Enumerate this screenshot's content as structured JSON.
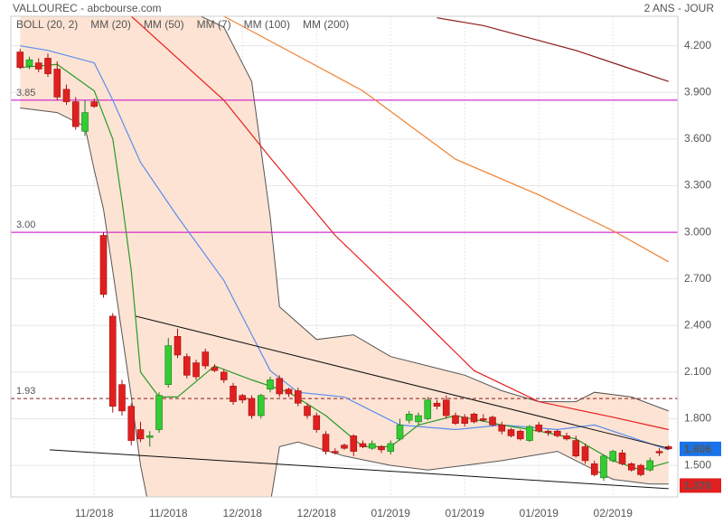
{
  "chart_data": {
    "type": "candlestick",
    "title": "VALLOUREC - abcbourse.com",
    "period": "2 ANS - JOUR",
    "xlim": [
      -1,
      71
    ],
    "ylim": [
      1.297,
      4.39
    ],
    "grid": true,
    "xticks": [
      {
        "value": 8,
        "label": "11/2018"
      },
      {
        "value": 16,
        "label": "11/2018"
      },
      {
        "value": 24,
        "label": "12/2018"
      },
      {
        "value": 32,
        "label": "12/2018"
      },
      {
        "value": 40,
        "label": "01/2019"
      },
      {
        "value": 48,
        "label": "01/2019"
      },
      {
        "value": 56,
        "label": "01/2019"
      },
      {
        "value": 64,
        "label": "02/2019"
      }
    ],
    "yticks": [
      {
        "value": 4.2,
        "label": "4.200"
      },
      {
        "value": 3.9,
        "label": "3.900"
      },
      {
        "value": 3.6,
        "label": "3.600"
      },
      {
        "value": 3.3,
        "label": "3.300"
      },
      {
        "value": 3.0,
        "label": "3.000"
      },
      {
        "value": 2.7,
        "label": "2.700"
      },
      {
        "value": 2.4,
        "label": "2.400"
      },
      {
        "value": 2.1,
        "label": "2.100"
      },
      {
        "value": 1.8,
        "label": "1.800"
      },
      {
        "value": 1.5,
        "label": "1.500"
      }
    ],
    "up_color": "#33cc33",
    "down_color": "#e02020",
    "candles": {
      "open": [
        4.16,
        4.07,
        4.09,
        4.12,
        4.05,
        3.92,
        3.84,
        3.65,
        3.84,
        2.98,
        2.46,
        2.02,
        1.88,
        1.73,
        1.68,
        1.73,
        2.02,
        2.33,
        2.2,
        2.16,
        2.23,
        2.13,
        2.1,
        2.01,
        1.95,
        1.93,
        1.82,
        1.99,
        2.06,
        1.99,
        1.98,
        1.88,
        1.82,
        1.7,
        1.59,
        1.63,
        1.69,
        1.64,
        1.61,
        1.62,
        1.59,
        1.67,
        1.79,
        1.78,
        1.8,
        1.9,
        1.92,
        1.82,
        1.81,
        1.83,
        1.8,
        1.81,
        1.76,
        1.73,
        1.72,
        1.66,
        1.76,
        1.72,
        1.72,
        1.69,
        1.66,
        1.62,
        1.51,
        1.42,
        1.53,
        1.58,
        1.51,
        1.5,
        1.47,
        1.59,
        1.62
      ],
      "high": [
        4.18,
        4.13,
        4.12,
        4.15,
        4.1,
        3.95,
        3.87,
        3.85,
        3.86,
        3.0,
        2.48,
        2.05,
        1.9,
        1.78,
        1.72,
        1.97,
        2.32,
        2.38,
        2.22,
        2.18,
        2.25,
        2.15,
        2.12,
        2.03,
        1.96,
        1.95,
        1.96,
        2.07,
        2.08,
        2.0,
        2.0,
        1.9,
        1.84,
        1.72,
        1.61,
        1.64,
        1.7,
        1.66,
        1.66,
        1.63,
        1.66,
        1.8,
        1.85,
        1.84,
        1.94,
        1.92,
        1.95,
        1.84,
        1.83,
        1.84,
        1.83,
        1.82,
        1.78,
        1.74,
        1.73,
        1.76,
        1.78,
        1.73,
        1.73,
        1.71,
        1.69,
        1.64,
        1.53,
        1.57,
        1.6,
        1.6,
        1.52,
        1.51,
        1.55,
        1.61,
        1.63
      ],
      "low": [
        4.05,
        4.05,
        4.03,
        4.0,
        3.85,
        3.82,
        3.66,
        3.62,
        3.8,
        2.58,
        1.84,
        1.82,
        1.63,
        1.65,
        1.62,
        1.71,
        2.0,
        2.19,
        2.06,
        2.05,
        2.12,
        2.1,
        2.03,
        1.89,
        1.9,
        1.8,
        1.8,
        1.97,
        1.94,
        1.94,
        1.88,
        1.8,
        1.71,
        1.57,
        1.57,
        1.6,
        1.56,
        1.61,
        1.6,
        1.58,
        1.57,
        1.66,
        1.77,
        1.76,
        1.79,
        1.86,
        1.8,
        1.76,
        1.75,
        1.77,
        1.78,
        1.75,
        1.7,
        1.68,
        1.66,
        1.65,
        1.71,
        1.69,
        1.68,
        1.66,
        1.55,
        1.51,
        1.43,
        1.4,
        1.52,
        1.5,
        1.46,
        1.43,
        1.46,
        1.56,
        1.6
      ],
      "close": [
        4.06,
        4.11,
        4.05,
        4.02,
        3.87,
        3.84,
        3.68,
        3.77,
        3.81,
        2.6,
        1.88,
        1.85,
        1.66,
        1.67,
        1.69,
        1.95,
        2.27,
        2.21,
        2.08,
        2.07,
        2.14,
        2.11,
        2.05,
        1.91,
        1.92,
        1.82,
        1.95,
        2.05,
        1.96,
        1.96,
        1.9,
        1.82,
        1.73,
        1.59,
        1.58,
        1.61,
        1.59,
        1.62,
        1.64,
        1.6,
        1.64,
        1.76,
        1.83,
        1.82,
        1.92,
        1.88,
        1.82,
        1.77,
        1.77,
        1.78,
        1.79,
        1.76,
        1.72,
        1.69,
        1.67,
        1.75,
        1.72,
        1.71,
        1.69,
        1.67,
        1.56,
        1.53,
        1.44,
        1.56,
        1.59,
        1.51,
        1.47,
        1.44,
        1.53,
        1.58,
        1.606
      ]
    },
    "bollinger": {
      "name": "BOLL (20, 2)",
      "color": "#555555",
      "fill": "#fde3d3",
      "x_upper": [
        0,
        12,
        22,
        25,
        27,
        28,
        32,
        36,
        40,
        44,
        48,
        52,
        56,
        60,
        62,
        66,
        70
      ],
      "upper": [
        4.6,
        4.6,
        4.32,
        3.97,
        3.1,
        2.52,
        2.31,
        2.34,
        2.2,
        2.14,
        2.08,
        1.98,
        1.91,
        1.91,
        1.97,
        1.94,
        1.85
      ],
      "x_lower": [
        0,
        4,
        7,
        8,
        9,
        10,
        12,
        13,
        14,
        15,
        27,
        28,
        30,
        35,
        40,
        44,
        48,
        52,
        58,
        61,
        64,
        68,
        70
      ],
      "lower": [
        3.8,
        3.77,
        3.68,
        3.4,
        3.15,
        2.75,
        1.94,
        1.5,
        1.2,
        1.1,
        1.25,
        1.62,
        1.65,
        1.56,
        1.5,
        1.47,
        1.5,
        1.53,
        1.59,
        1.5,
        1.41,
        1.38,
        1.38
      ]
    },
    "lines": [
      {
        "name": "MM (20)",
        "color": "#5b8def",
        "x": [
          0,
          3,
          8,
          10,
          13,
          17,
          22,
          27,
          30,
          35,
          41,
          47,
          52,
          58,
          62,
          70
        ],
        "values": [
          4.2,
          4.17,
          4.09,
          3.85,
          3.45,
          3.1,
          2.69,
          2.11,
          1.97,
          1.94,
          1.76,
          1.73,
          1.76,
          1.73,
          1.76,
          1.6
        ]
      },
      {
        "name": "MM (50)",
        "color": "#e82020",
        "x": [
          12,
          22,
          27,
          34,
          42,
          49,
          56,
          64,
          70
        ],
        "values": [
          4.39,
          3.85,
          3.48,
          2.98,
          2.52,
          2.11,
          1.91,
          1.81,
          1.73
        ]
      },
      {
        "name": "MM (7)",
        "color": "#2a9a2a",
        "x": [
          0,
          4,
          8,
          10,
          11,
          12,
          13,
          15,
          17,
          21,
          25,
          29,
          33,
          37,
          40,
          43,
          47,
          52,
          56,
          60,
          64,
          67,
          70
        ],
        "values": [
          4.06,
          4.08,
          3.91,
          3.6,
          3.2,
          2.75,
          2.1,
          1.94,
          1.94,
          2.14,
          2.05,
          1.97,
          1.82,
          1.62,
          1.62,
          1.76,
          1.82,
          1.76,
          1.72,
          1.67,
          1.53,
          1.47,
          1.52
        ]
      },
      {
        "name": "MM (100)",
        "color": "#f08030",
        "x": [
          22,
          27,
          37,
          47,
          56,
          64,
          70
        ],
        "values": [
          4.39,
          4.23,
          3.91,
          3.47,
          3.24,
          3.01,
          2.81
        ]
      },
      {
        "name": "MM (200)",
        "color": "#8b1a1a",
        "x": [
          45,
          50,
          55,
          60,
          65,
          70
        ],
        "values": [
          4.38,
          4.33,
          4.25,
          4.17,
          4.07,
          3.97
        ]
      }
    ],
    "levels": [
      {
        "value": 3.85,
        "label": "3.85",
        "color": "#cc00cc",
        "dashed": false
      },
      {
        "value": 3.0,
        "label": "3.00",
        "color": "#cc00cc",
        "dashed": false
      },
      {
        "value": 1.93,
        "label": "1.93",
        "color": "#8b1a1a",
        "dashed": true
      }
    ],
    "trendlines": [
      {
        "x": [
          12.5,
          70
        ],
        "values": [
          2.46,
          1.61
        ]
      },
      {
        "x": [
          3.2,
          70
        ],
        "values": [
          1.6,
          1.35
        ]
      }
    ],
    "badges": [
      {
        "value": 1.606,
        "color": "#1a73e8"
      },
      {
        "value": 1.37,
        "label": "1.370",
        "color": "#e02020"
      }
    ]
  }
}
